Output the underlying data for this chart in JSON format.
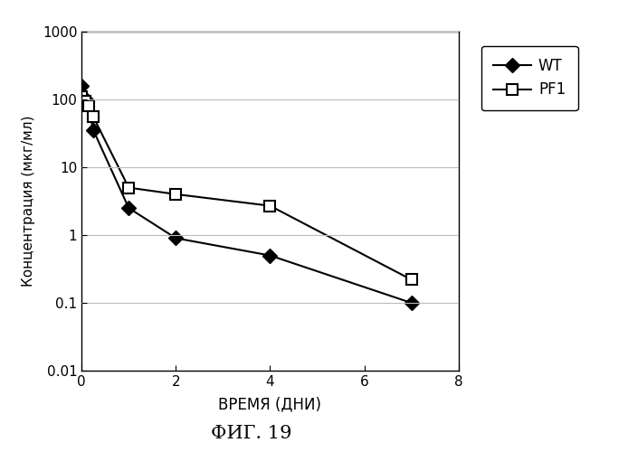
{
  "wt_x": [
    0,
    0.1,
    0.25,
    1,
    2,
    4,
    7
  ],
  "wt_y": [
    160,
    100,
    35,
    2.5,
    0.9,
    0.5,
    0.1
  ],
  "pf1_x": [
    0,
    0.08,
    0.15,
    0.25,
    1,
    2,
    4,
    7
  ],
  "pf1_y": [
    110,
    95,
    80,
    55,
    5.0,
    4.0,
    2.7,
    0.22
  ],
  "xlabel": "ВРЕМЯ (ДНИ)",
  "ylabel": "Концентрация (мкг/мл)",
  "caption": "ФИГ. 19",
  "xlim": [
    0,
    8
  ],
  "ylim_log": [
    0.01,
    1000
  ],
  "yticks": [
    0.01,
    0.1,
    1,
    10,
    100,
    1000
  ],
  "xticks": [
    0,
    2,
    4,
    6,
    8
  ],
  "legend_wt": "WT",
  "legend_pf1": "PF1",
  "wt_color": "#000000",
  "pf1_color": "#000000",
  "bg_color": "#ffffff",
  "grid_color": "#bbbbbb"
}
